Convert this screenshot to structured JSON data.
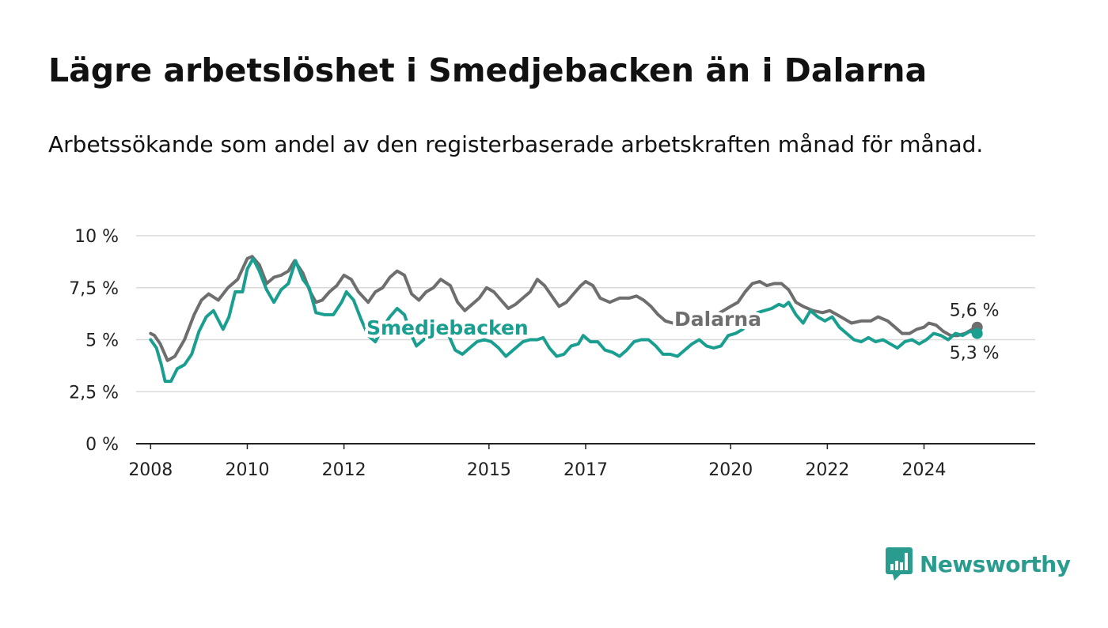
{
  "title": "Lägre arbetslöshet i Smedjebacken än i Dalarna",
  "subtitle": "Arbetssökande som andel av den registerbaserade arbetskraften månad för månad.",
  "brand": {
    "name": "Newsworthy",
    "icon": "newsworthy-logo-icon",
    "color": "#2a9c8f"
  },
  "chart_data": {
    "type": "line",
    "title": "Lägre arbetslöshet i Smedjebacken än i Dalarna",
    "subtitle": "Arbetssökande som andel av den registerbaserade arbetskraften månad för månad.",
    "xlabel": "",
    "ylabel": "",
    "xlim": [
      2007.7,
      2026.3
    ],
    "ylim": [
      0,
      10
    ],
    "x_ticks": [
      2008,
      2010,
      2012,
      2015,
      2017,
      2020,
      2022,
      2024
    ],
    "y_ticks": [
      0,
      2.5,
      5,
      7.5,
      10
    ],
    "y_tick_labels": [
      "0 %",
      "2,5 %",
      "5 %",
      "7,5 %",
      "10 %"
    ],
    "grid": true,
    "legend": "inline labels",
    "series": [
      {
        "name": "Dalarna",
        "color": "#6e6e6e",
        "end_label": "5,6 %",
        "end_value": 5.6,
        "points": [
          [
            2008.0,
            5.3
          ],
          [
            2008.08,
            5.2
          ],
          [
            2008.2,
            4.8
          ],
          [
            2008.35,
            4.0
          ],
          [
            2008.5,
            4.2
          ],
          [
            2008.7,
            5.0
          ],
          [
            2008.9,
            6.2
          ],
          [
            2009.05,
            6.9
          ],
          [
            2009.2,
            7.2
          ],
          [
            2009.4,
            6.9
          ],
          [
            2009.6,
            7.5
          ],
          [
            2009.8,
            7.9
          ],
          [
            2010.0,
            8.9
          ],
          [
            2010.1,
            9.0
          ],
          [
            2010.25,
            8.6
          ],
          [
            2010.4,
            7.7
          ],
          [
            2010.55,
            8.0
          ],
          [
            2010.7,
            8.1
          ],
          [
            2010.85,
            8.3
          ],
          [
            2010.98,
            8.8
          ],
          [
            2011.15,
            8.2
          ],
          [
            2011.3,
            7.3
          ],
          [
            2011.42,
            6.8
          ],
          [
            2011.55,
            6.9
          ],
          [
            2011.7,
            7.3
          ],
          [
            2011.85,
            7.6
          ],
          [
            2012.0,
            8.1
          ],
          [
            2012.15,
            7.9
          ],
          [
            2012.3,
            7.3
          ],
          [
            2012.5,
            6.8
          ],
          [
            2012.65,
            7.3
          ],
          [
            2012.8,
            7.5
          ],
          [
            2012.95,
            8.0
          ],
          [
            2013.1,
            8.3
          ],
          [
            2013.25,
            8.1
          ],
          [
            2013.4,
            7.2
          ],
          [
            2013.55,
            6.9
          ],
          [
            2013.7,
            7.3
          ],
          [
            2013.85,
            7.5
          ],
          [
            2014.0,
            7.9
          ],
          [
            2014.2,
            7.6
          ],
          [
            2014.35,
            6.8
          ],
          [
            2014.5,
            6.4
          ],
          [
            2014.65,
            6.7
          ],
          [
            2014.8,
            7.0
          ],
          [
            2014.95,
            7.5
          ],
          [
            2015.1,
            7.3
          ],
          [
            2015.25,
            6.9
          ],
          [
            2015.4,
            6.5
          ],
          [
            2015.55,
            6.7
          ],
          [
            2015.7,
            7.0
          ],
          [
            2015.85,
            7.3
          ],
          [
            2016.0,
            7.9
          ],
          [
            2016.15,
            7.6
          ],
          [
            2016.3,
            7.1
          ],
          [
            2016.45,
            6.6
          ],
          [
            2016.6,
            6.8
          ],
          [
            2016.75,
            7.2
          ],
          [
            2016.9,
            7.6
          ],
          [
            2017.0,
            7.8
          ],
          [
            2017.15,
            7.6
          ],
          [
            2017.3,
            7.0
          ],
          [
            2017.5,
            6.8
          ],
          [
            2017.7,
            7.0
          ],
          [
            2017.9,
            7.0
          ],
          [
            2018.05,
            7.1
          ],
          [
            2018.2,
            6.9
          ],
          [
            2018.35,
            6.6
          ],
          [
            2018.5,
            6.2
          ],
          [
            2018.65,
            5.9
          ],
          [
            2018.8,
            5.8
          ],
          [
            2018.95,
            5.9
          ],
          [
            2019.1,
            6.1
          ],
          [
            2019.25,
            6.0
          ],
          [
            2019.4,
            5.8
          ],
          [
            2019.55,
            5.9
          ],
          [
            2019.7,
            6.2
          ],
          [
            2019.85,
            6.4
          ],
          [
            2020.0,
            6.6
          ],
          [
            2020.15,
            6.8
          ],
          [
            2020.3,
            7.3
          ],
          [
            2020.45,
            7.7
          ],
          [
            2020.6,
            7.8
          ],
          [
            2020.75,
            7.6
          ],
          [
            2020.9,
            7.7
          ],
          [
            2021.05,
            7.7
          ],
          [
            2021.2,
            7.4
          ],
          [
            2021.35,
            6.8
          ],
          [
            2021.5,
            6.6
          ],
          [
            2021.7,
            6.4
          ],
          [
            2021.9,
            6.3
          ],
          [
            2022.05,
            6.4
          ],
          [
            2022.2,
            6.2
          ],
          [
            2022.35,
            6.0
          ],
          [
            2022.5,
            5.8
          ],
          [
            2022.7,
            5.9
          ],
          [
            2022.9,
            5.9
          ],
          [
            2023.05,
            6.1
          ],
          [
            2023.25,
            5.9
          ],
          [
            2023.4,
            5.6
          ],
          [
            2023.55,
            5.3
          ],
          [
            2023.7,
            5.3
          ],
          [
            2023.85,
            5.5
          ],
          [
            2024.0,
            5.6
          ],
          [
            2024.1,
            5.8
          ],
          [
            2024.25,
            5.7
          ],
          [
            2024.4,
            5.4
          ],
          [
            2024.55,
            5.2
          ],
          [
            2024.7,
            5.2
          ],
          [
            2024.85,
            5.3
          ],
          [
            2025.0,
            5.5
          ],
          [
            2025.1,
            5.6
          ]
        ]
      },
      {
        "name": "Smedjebacken",
        "color": "#1a9e8f",
        "end_label": "5,3 %",
        "end_value": 5.3,
        "points": [
          [
            2008.0,
            5.0
          ],
          [
            2008.12,
            4.6
          ],
          [
            2008.22,
            3.8
          ],
          [
            2008.3,
            3.0
          ],
          [
            2008.42,
            3.0
          ],
          [
            2008.55,
            3.6
          ],
          [
            2008.7,
            3.8
          ],
          [
            2008.85,
            4.3
          ],
          [
            2009.0,
            5.4
          ],
          [
            2009.15,
            6.1
          ],
          [
            2009.3,
            6.4
          ],
          [
            2009.5,
            5.5
          ],
          [
            2009.62,
            6.1
          ],
          [
            2009.75,
            7.3
          ],
          [
            2009.9,
            7.3
          ],
          [
            2010.0,
            8.4
          ],
          [
            2010.12,
            8.9
          ],
          [
            2010.25,
            8.3
          ],
          [
            2010.4,
            7.4
          ],
          [
            2010.55,
            6.8
          ],
          [
            2010.7,
            7.4
          ],
          [
            2010.85,
            7.7
          ],
          [
            2011.0,
            8.8
          ],
          [
            2011.15,
            7.9
          ],
          [
            2011.28,
            7.5
          ],
          [
            2011.42,
            6.3
          ],
          [
            2011.6,
            6.2
          ],
          [
            2011.78,
            6.2
          ],
          [
            2011.95,
            6.8
          ],
          [
            2012.05,
            7.3
          ],
          [
            2012.2,
            6.9
          ],
          [
            2012.35,
            6.0
          ],
          [
            2012.5,
            5.2
          ],
          [
            2012.65,
            4.9
          ],
          [
            2012.8,
            5.6
          ],
          [
            2012.95,
            6.1
          ],
          [
            2013.1,
            6.5
          ],
          [
            2013.25,
            6.2
          ],
          [
            2013.38,
            5.3
          ],
          [
            2013.5,
            4.7
          ],
          [
            2013.65,
            5.0
          ],
          [
            2013.8,
            5.6
          ],
          [
            2014.0,
            5.8
          ],
          [
            2014.15,
            5.3
          ],
          [
            2014.3,
            4.5
          ],
          [
            2014.45,
            4.3
          ],
          [
            2014.6,
            4.6
          ],
          [
            2014.75,
            4.9
          ],
          [
            2014.9,
            5.0
          ],
          [
            2015.05,
            4.9
          ],
          [
            2015.2,
            4.6
          ],
          [
            2015.35,
            4.2
          ],
          [
            2015.5,
            4.5
          ],
          [
            2015.7,
            4.9
          ],
          [
            2015.85,
            5.0
          ],
          [
            2016.0,
            5.0
          ],
          [
            2016.12,
            5.1
          ],
          [
            2016.25,
            4.6
          ],
          [
            2016.4,
            4.2
          ],
          [
            2016.55,
            4.3
          ],
          [
            2016.7,
            4.7
          ],
          [
            2016.85,
            4.8
          ],
          [
            2016.95,
            5.2
          ],
          [
            2017.1,
            4.9
          ],
          [
            2017.25,
            4.9
          ],
          [
            2017.4,
            4.5
          ],
          [
            2017.55,
            4.4
          ],
          [
            2017.7,
            4.2
          ],
          [
            2017.85,
            4.5
          ],
          [
            2018.0,
            4.9
          ],
          [
            2018.15,
            5.0
          ],
          [
            2018.3,
            5.0
          ],
          [
            2018.45,
            4.7
          ],
          [
            2018.6,
            4.3
          ],
          [
            2018.75,
            4.3
          ],
          [
            2018.9,
            4.2
          ],
          [
            2019.05,
            4.5
          ],
          [
            2019.2,
            4.8
          ],
          [
            2019.35,
            5.0
          ],
          [
            2019.5,
            4.7
          ],
          [
            2019.65,
            4.6
          ],
          [
            2019.8,
            4.7
          ],
          [
            2019.95,
            5.2
          ],
          [
            2020.1,
            5.3
          ],
          [
            2020.25,
            5.5
          ],
          [
            2020.4,
            6.0
          ],
          [
            2020.55,
            6.3
          ],
          [
            2020.7,
            6.4
          ],
          [
            2020.85,
            6.5
          ],
          [
            2021.0,
            6.7
          ],
          [
            2021.1,
            6.6
          ],
          [
            2021.2,
            6.8
          ],
          [
            2021.35,
            6.2
          ],
          [
            2021.5,
            5.8
          ],
          [
            2021.65,
            6.4
          ],
          [
            2021.8,
            6.1
          ],
          [
            2021.95,
            5.9
          ],
          [
            2022.1,
            6.1
          ],
          [
            2022.25,
            5.6
          ],
          [
            2022.4,
            5.3
          ],
          [
            2022.55,
            5.0
          ],
          [
            2022.7,
            4.9
          ],
          [
            2022.85,
            5.1
          ],
          [
            2023.0,
            4.9
          ],
          [
            2023.15,
            5.0
          ],
          [
            2023.3,
            4.8
          ],
          [
            2023.45,
            4.6
          ],
          [
            2023.6,
            4.9
          ],
          [
            2023.75,
            5.0
          ],
          [
            2023.9,
            4.8
          ],
          [
            2024.05,
            5.0
          ],
          [
            2024.2,
            5.3
          ],
          [
            2024.35,
            5.2
          ],
          [
            2024.5,
            5.0
          ],
          [
            2024.65,
            5.3
          ],
          [
            2024.8,
            5.2
          ],
          [
            2024.95,
            5.4
          ],
          [
            2025.1,
            5.3
          ]
        ]
      }
    ]
  }
}
